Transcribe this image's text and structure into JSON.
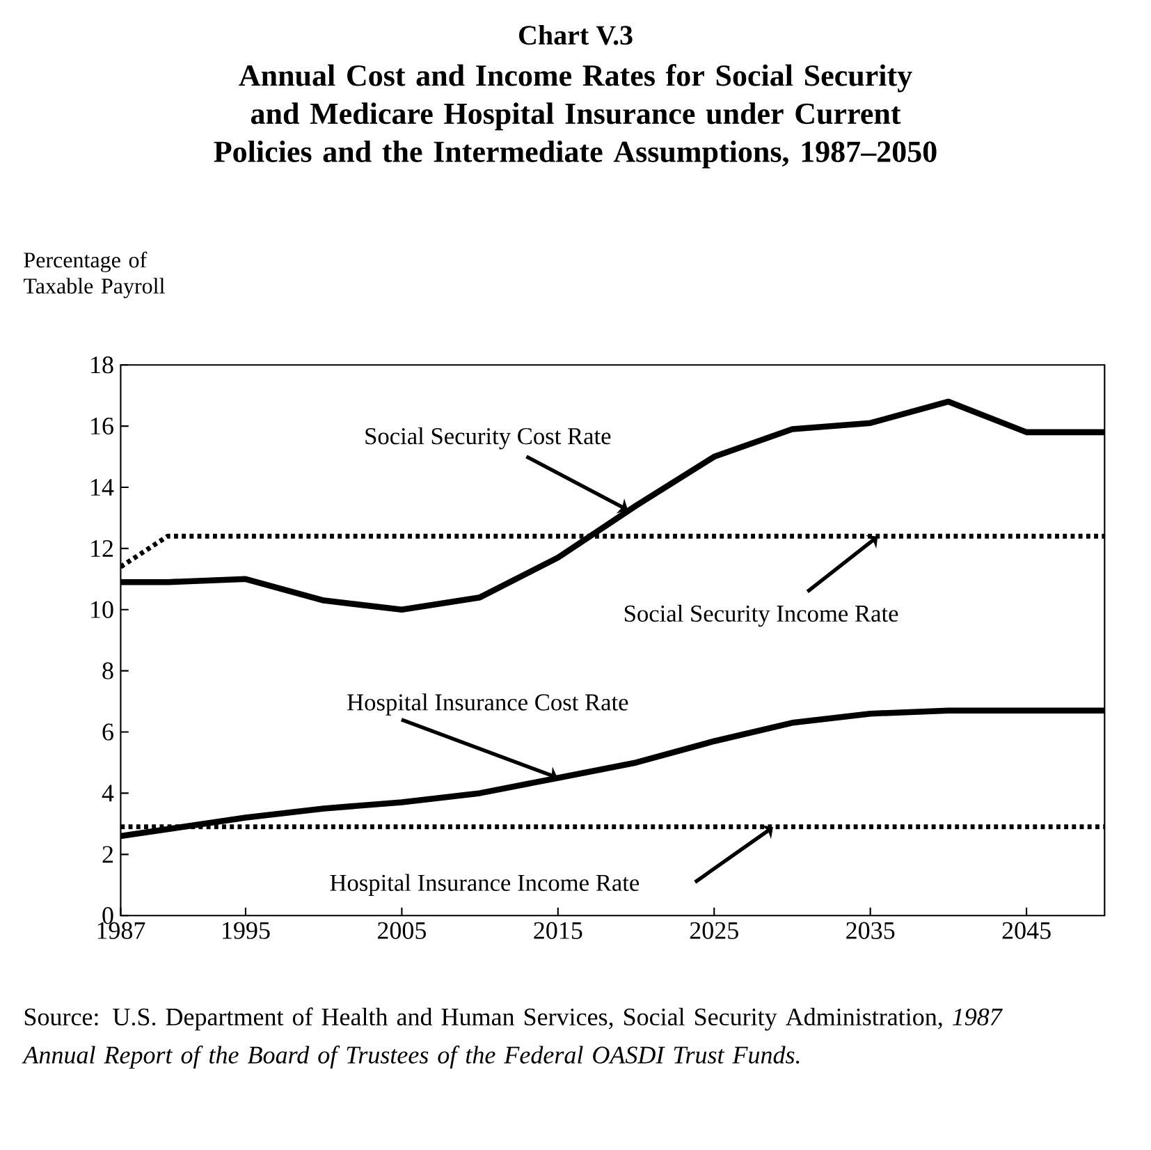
{
  "chart_data": {
    "type": "line",
    "title": "Chart V.3",
    "subtitle": "Annual Cost and Income Rates for Social Security and Medicare Hospital Insurance under Current Policies and the Intermediate Assumptions, 1987–2050",
    "ylabel": "Percentage of Taxable Payroll",
    "xlim": [
      1987,
      2050
    ],
    "xticks": [
      1987,
      1995,
      2005,
      2015,
      2025,
      2035,
      2045
    ],
    "ylim": [
      0,
      18
    ],
    "yticks": [
      0,
      2,
      4,
      6,
      8,
      10,
      12,
      14,
      16,
      18
    ],
    "grid": false,
    "legend": false,
    "marker": "none",
    "series": [
      {
        "name": "Social Security Cost Rate",
        "color": "#000000",
        "line_style": "solid",
        "x": [
          1987,
          1990,
          1995,
          2000,
          2005,
          2010,
          2015,
          2020,
          2025,
          2030,
          2035,
          2040,
          2045,
          2050
        ],
        "values": [
          10.9,
          10.9,
          11.0,
          10.3,
          10.0,
          10.4,
          11.7,
          13.4,
          15.0,
          15.9,
          16.1,
          16.8,
          15.8,
          15.8
        ]
      },
      {
        "name": "Social Security Income Rate",
        "color": "#000000",
        "line_style": "dotted",
        "x": [
          1987,
          1990,
          2050
        ],
        "values": [
          11.4,
          12.4,
          12.4
        ]
      },
      {
        "name": "Hospital Insurance Cost Rate",
        "color": "#000000",
        "line_style": "solid",
        "x": [
          1987,
          1995,
          2000,
          2005,
          2010,
          2015,
          2020,
          2025,
          2030,
          2035,
          2040,
          2050
        ],
        "values": [
          2.6,
          3.2,
          3.5,
          3.7,
          4.0,
          4.5,
          5.0,
          5.7,
          6.3,
          6.6,
          6.7,
          6.7
        ]
      },
      {
        "name": "Hospital Insurance Income Rate",
        "color": "#000000",
        "line_style": "dotted",
        "x": [
          1987,
          2050
        ],
        "values": [
          2.9,
          2.9
        ]
      }
    ],
    "annotations": [
      "Source: U.S. Department of Health and Human Services, Social Security Administration, *1987 Annual Report of the Board of Trustees of the Federal OASDI Trust Funds.*"
    ]
  }
}
